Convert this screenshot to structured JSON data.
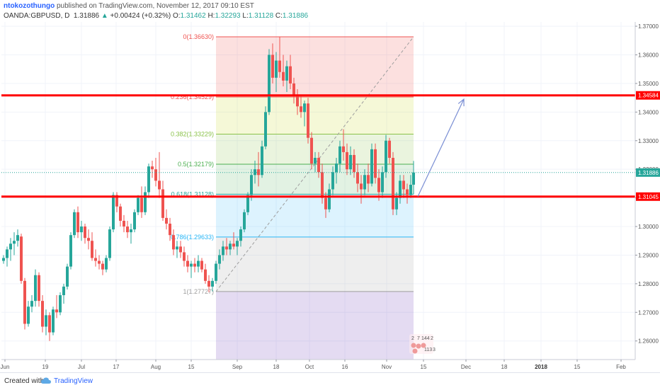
{
  "header": {
    "user": "ntokozothungo",
    "published": "published on TradingView.com, November 12, 2017 09:10 EST",
    "symbol": "OANDA:GBPUSD, D",
    "last": "1.31886",
    "change": "+0.00424 (+0.32%)",
    "o_label": "O:",
    "o_val": "1.31462",
    "h_label": "H:",
    "h_val": "1.32293",
    "l_label": "L:",
    "l_val": "1.31128",
    "c_label": "C:",
    "c_val": "1.31886"
  },
  "footer": {
    "created": "Created with",
    "brand": "TradingView"
  },
  "colors": {
    "up": "#26a69a",
    "down": "#ef5350",
    "level": "#ff0000",
    "arrow": "#7b8fd4",
    "accent": "#2962ff"
  },
  "chart_data": {
    "type": "candlestick",
    "ylim": [
      1.2535,
      1.3715
    ],
    "yticks": [
      1.26,
      1.27,
      1.28,
      1.29,
      1.3,
      1.31,
      1.32,
      1.33,
      1.34,
      1.35,
      1.36,
      1.37
    ],
    "ytick_labels": [
      "1.26000",
      "1.27000",
      "1.28000",
      "1.29000",
      "1.30000",
      "1.31000",
      "1.32000",
      "1.33000",
      "1.34000",
      "1.35000",
      "1.36000",
      "1.37000"
    ],
    "xticks": [
      {
        "label": "Jun",
        "x": 7
      },
      {
        "label": "19",
        "x": 64
      },
      {
        "label": "Jul",
        "x": 115
      },
      {
        "label": "17",
        "x": 164
      },
      {
        "label": "Aug",
        "x": 220
      },
      {
        "label": "15",
        "x": 270
      },
      {
        "label": "Sep",
        "x": 335
      },
      {
        "label": "18",
        "x": 390
      },
      {
        "label": "Oct",
        "x": 437
      },
      {
        "label": "16",
        "x": 487
      },
      {
        "label": "Nov",
        "x": 546
      },
      {
        "label": "15",
        "x": 598
      },
      {
        "label": "Dec",
        "x": 658
      },
      {
        "label": "18",
        "x": 712
      },
      {
        "label": "2018",
        "x": 764
      },
      {
        "label": "15",
        "x": 815
      },
      {
        "label": "Feb",
        "x": 877
      }
    ],
    "fib_levels": [
      {
        "ratio": "0",
        "price": 1.3663,
        "label": "0(1.36630)",
        "color": "#ef5350",
        "fill": "rgba(239,83,80,0.18)"
      },
      {
        "ratio": "0.236",
        "price": 1.34529,
        "label": "0.236(1.34529)",
        "color": "#ef5350",
        "fill": "rgba(205,220,57,0.20)"
      },
      {
        "ratio": "0.382",
        "price": 1.33229,
        "label": "0.382(1.33229)",
        "color": "#8bc34a",
        "fill": "rgba(139,195,74,0.18)"
      },
      {
        "ratio": "0.5",
        "price": 1.32179,
        "label": "0.5(1.32179)",
        "color": "#4caf50",
        "fill": "rgba(76,175,80,0.16)"
      },
      {
        "ratio": "0.618",
        "price": 1.31128,
        "label": "0.618(1.31128)",
        "color": "#26a69a",
        "fill": "rgba(41,182,246,0.16)"
      },
      {
        "ratio": "0.786",
        "price": 1.29633,
        "label": "0.786(1.29633)",
        "color": "#29b6f6",
        "fill": "rgba(158,158,158,0.18)"
      },
      {
        "ratio": "1",
        "price": 1.27727,
        "label": "1(1.27727)",
        "color": "#9e9e9e",
        "fill": "rgba(103,58,183,0.18)"
      }
    ],
    "horizontal_levels": [
      {
        "price": 1.34584,
        "label": "1.34584"
      },
      {
        "price": 1.31045,
        "label": "1.31045"
      }
    ],
    "last_price_label": "1.31886",
    "last_price": 1.31886,
    "arrow": {
      "from_price": 1.3105,
      "to_price": 1.3445
    },
    "badges": [
      "2",
      "7",
      "144",
      "2",
      "113",
      "3"
    ],
    "candles": [
      {
        "x": 5,
        "o": 1.288,
        "h": 1.29,
        "l": 1.287,
        "c": 1.289
      },
      {
        "x": 10,
        "o": 1.289,
        "h": 1.293,
        "l": 1.286,
        "c": 1.292
      },
      {
        "x": 15,
        "o": 1.292,
        "h": 1.296,
        "l": 1.288,
        "c": 1.294
      },
      {
        "x": 20,
        "o": 1.294,
        "h": 1.298,
        "l": 1.29,
        "c": 1.295
      },
      {
        "x": 25,
        "o": 1.295,
        "h": 1.299,
        "l": 1.293,
        "c": 1.297
      },
      {
        "x": 30,
        "o": 1.2965,
        "h": 1.2975,
        "l": 1.28,
        "c": 1.281
      },
      {
        "x": 35,
        "o": 1.281,
        "h": 1.282,
        "l": 1.264,
        "c": 1.266
      },
      {
        "x": 40,
        "o": 1.266,
        "h": 1.274,
        "l": 1.265,
        "c": 1.272
      },
      {
        "x": 45,
        "o": 1.272,
        "h": 1.276,
        "l": 1.27,
        "c": 1.274
      },
      {
        "x": 50,
        "o": 1.274,
        "h": 1.285,
        "l": 1.272,
        "c": 1.283
      },
      {
        "x": 55,
        "o": 1.283,
        "h": 1.284,
        "l": 1.272,
        "c": 1.274
      },
      {
        "x": 60,
        "o": 1.274,
        "h": 1.276,
        "l": 1.263,
        "c": 1.265
      },
      {
        "x": 65,
        "o": 1.265,
        "h": 1.271,
        "l": 1.262,
        "c": 1.269
      },
      {
        "x": 70,
        "o": 1.269,
        "h": 1.27,
        "l": 1.26,
        "c": 1.263
      },
      {
        "x": 75,
        "o": 1.263,
        "h": 1.272,
        "l": 1.262,
        "c": 1.271
      },
      {
        "x": 80,
        "o": 1.271,
        "h": 1.276,
        "l": 1.268,
        "c": 1.27
      },
      {
        "x": 85,
        "o": 1.27,
        "h": 1.277,
        "l": 1.269,
        "c": 1.276
      },
      {
        "x": 90,
        "o": 1.276,
        "h": 1.28,
        "l": 1.273,
        "c": 1.279
      },
      {
        "x": 95,
        "o": 1.279,
        "h": 1.287,
        "l": 1.278,
        "c": 1.286
      },
      {
        "x": 100,
        "o": 1.286,
        "h": 1.298,
        "l": 1.285,
        "c": 1.297
      },
      {
        "x": 105,
        "o": 1.297,
        "h": 1.306,
        "l": 1.296,
        "c": 1.305
      },
      {
        "x": 110,
        "o": 1.305,
        "h": 1.307,
        "l": 1.296,
        "c": 1.298
      },
      {
        "x": 115,
        "o": 1.298,
        "h": 1.302,
        "l": 1.295,
        "c": 1.3
      },
      {
        "x": 120,
        "o": 1.3,
        "h": 1.301,
        "l": 1.294,
        "c": 1.296
      },
      {
        "x": 125,
        "o": 1.296,
        "h": 1.299,
        "l": 1.292,
        "c": 1.295
      },
      {
        "x": 130,
        "o": 1.295,
        "h": 1.298,
        "l": 1.288,
        "c": 1.289
      },
      {
        "x": 135,
        "o": 1.289,
        "h": 1.292,
        "l": 1.286,
        "c": 1.288
      },
      {
        "x": 140,
        "o": 1.288,
        "h": 1.29,
        "l": 1.285,
        "c": 1.287
      },
      {
        "x": 145,
        "o": 1.287,
        "h": 1.288,
        "l": 1.283,
        "c": 1.285
      },
      {
        "x": 150,
        "o": 1.285,
        "h": 1.29,
        "l": 1.284,
        "c": 1.289
      },
      {
        "x": 155,
        "o": 1.289,
        "h": 1.3,
        "l": 1.288,
        "c": 1.299
      },
      {
        "x": 160,
        "o": 1.299,
        "h": 1.312,
        "l": 1.298,
        "c": 1.311
      },
      {
        "x": 165,
        "o": 1.311,
        "h": 1.312,
        "l": 1.305,
        "c": 1.307
      },
      {
        "x": 170,
        "o": 1.307,
        "h": 1.308,
        "l": 1.3,
        "c": 1.302
      },
      {
        "x": 175,
        "o": 1.302,
        "h": 1.304,
        "l": 1.298,
        "c": 1.3
      },
      {
        "x": 180,
        "o": 1.3,
        "h": 1.302,
        "l": 1.296,
        "c": 1.298
      },
      {
        "x": 185,
        "o": 1.298,
        "h": 1.301,
        "l": 1.294,
        "c": 1.299
      },
      {
        "x": 190,
        "o": 1.299,
        "h": 1.306,
        "l": 1.298,
        "c": 1.305
      },
      {
        "x": 195,
        "o": 1.305,
        "h": 1.311,
        "l": 1.304,
        "c": 1.31
      },
      {
        "x": 200,
        "o": 1.31,
        "h": 1.314,
        "l": 1.303,
        "c": 1.305
      },
      {
        "x": 205,
        "o": 1.305,
        "h": 1.314,
        "l": 1.304,
        "c": 1.312
      },
      {
        "x": 210,
        "o": 1.312,
        "h": 1.322,
        "l": 1.31,
        "c": 1.321
      },
      {
        "x": 215,
        "o": 1.321,
        "h": 1.323,
        "l": 1.317,
        "c": 1.32
      },
      {
        "x": 220,
        "o": 1.32,
        "h": 1.324,
        "l": 1.314,
        "c": 1.316
      },
      {
        "x": 225,
        "o": 1.316,
        "h": 1.326,
        "l": 1.31,
        "c": 1.313
      },
      {
        "x": 230,
        "o": 1.313,
        "h": 1.316,
        "l": 1.302,
        "c": 1.303
      },
      {
        "x": 235,
        "o": 1.303,
        "h": 1.306,
        "l": 1.299,
        "c": 1.301
      },
      {
        "x": 240,
        "o": 1.301,
        "h": 1.303,
        "l": 1.295,
        "c": 1.297
      },
      {
        "x": 245,
        "o": 1.297,
        "h": 1.299,
        "l": 1.29,
        "c": 1.292
      },
      {
        "x": 250,
        "o": 1.292,
        "h": 1.295,
        "l": 1.289,
        "c": 1.293
      },
      {
        "x": 255,
        "o": 1.293,
        "h": 1.295,
        "l": 1.289,
        "c": 1.291
      },
      {
        "x": 260,
        "o": 1.291,
        "h": 1.293,
        "l": 1.286,
        "c": 1.288
      },
      {
        "x": 265,
        "o": 1.288,
        "h": 1.29,
        "l": 1.284,
        "c": 1.286
      },
      {
        "x": 270,
        "o": 1.286,
        "h": 1.288,
        "l": 1.282,
        "c": 1.287
      },
      {
        "x": 275,
        "o": 1.287,
        "h": 1.289,
        "l": 1.284,
        "c": 1.286
      },
      {
        "x": 280,
        "o": 1.286,
        "h": 1.29,
        "l": 1.284,
        "c": 1.288
      },
      {
        "x": 285,
        "o": 1.288,
        "h": 1.289,
        "l": 1.284,
        "c": 1.285
      },
      {
        "x": 290,
        "o": 1.285,
        "h": 1.287,
        "l": 1.28,
        "c": 1.281
      },
      {
        "x": 295,
        "o": 1.281,
        "h": 1.283,
        "l": 1.277,
        "c": 1.279
      },
      {
        "x": 300,
        "o": 1.279,
        "h": 1.282,
        "l": 1.2773,
        "c": 1.281
      },
      {
        "x": 305,
        "o": 1.281,
        "h": 1.288,
        "l": 1.28,
        "c": 1.287
      },
      {
        "x": 310,
        "o": 1.287,
        "h": 1.292,
        "l": 1.285,
        "c": 1.29
      },
      {
        "x": 315,
        "o": 1.29,
        "h": 1.295,
        "l": 1.288,
        "c": 1.293
      },
      {
        "x": 320,
        "o": 1.293,
        "h": 1.296,
        "l": 1.29,
        "c": 1.292
      },
      {
        "x": 325,
        "o": 1.292,
        "h": 1.295,
        "l": 1.29,
        "c": 1.294
      },
      {
        "x": 330,
        "o": 1.294,
        "h": 1.298,
        "l": 1.292,
        "c": 1.293
      },
      {
        "x": 335,
        "o": 1.293,
        "h": 1.296,
        "l": 1.29,
        "c": 1.295
      },
      {
        "x": 340,
        "o": 1.295,
        "h": 1.3,
        "l": 1.293,
        "c": 1.299
      },
      {
        "x": 345,
        "o": 1.299,
        "h": 1.306,
        "l": 1.298,
        "c": 1.305
      },
      {
        "x": 350,
        "o": 1.305,
        "h": 1.312,
        "l": 1.304,
        "c": 1.311
      },
      {
        "x": 355,
        "o": 1.311,
        "h": 1.32,
        "l": 1.309,
        "c": 1.318
      },
      {
        "x": 360,
        "o": 1.318,
        "h": 1.323,
        "l": 1.315,
        "c": 1.32
      },
      {
        "x": 365,
        "o": 1.32,
        "h": 1.326,
        "l": 1.314,
        "c": 1.318
      },
      {
        "x": 370,
        "o": 1.318,
        "h": 1.33,
        "l": 1.317,
        "c": 1.328
      },
      {
        "x": 375,
        "o": 1.328,
        "h": 1.342,
        "l": 1.327,
        "c": 1.34
      },
      {
        "x": 380,
        "o": 1.34,
        "h": 1.362,
        "l": 1.339,
        "c": 1.36
      },
      {
        "x": 385,
        "o": 1.36,
        "h": 1.364,
        "l": 1.35,
        "c": 1.352
      },
      {
        "x": 390,
        "o": 1.352,
        "h": 1.361,
        "l": 1.347,
        "c": 1.358
      },
      {
        "x": 395,
        "o": 1.358,
        "h": 1.3663,
        "l": 1.352,
        "c": 1.354
      },
      {
        "x": 400,
        "o": 1.354,
        "h": 1.36,
        "l": 1.349,
        "c": 1.351
      },
      {
        "x": 405,
        "o": 1.351,
        "h": 1.358,
        "l": 1.347,
        "c": 1.356
      },
      {
        "x": 410,
        "o": 1.356,
        "h": 1.36,
        "l": 1.348,
        "c": 1.35
      },
      {
        "x": 415,
        "o": 1.35,
        "h": 1.352,
        "l": 1.343,
        "c": 1.346
      },
      {
        "x": 420,
        "o": 1.346,
        "h": 1.348,
        "l": 1.339,
        "c": 1.342
      },
      {
        "x": 425,
        "o": 1.342,
        "h": 1.346,
        "l": 1.338,
        "c": 1.34
      },
      {
        "x": 430,
        "o": 1.34,
        "h": 1.344,
        "l": 1.335,
        "c": 1.343
      },
      {
        "x": 435,
        "o": 1.343,
        "h": 1.345,
        "l": 1.329,
        "c": 1.331
      },
      {
        "x": 440,
        "o": 1.331,
        "h": 1.333,
        "l": 1.32,
        "c": 1.322
      },
      {
        "x": 445,
        "o": 1.322,
        "h": 1.326,
        "l": 1.319,
        "c": 1.324
      },
      {
        "x": 450,
        "o": 1.324,
        "h": 1.326,
        "l": 1.317,
        "c": 1.319
      },
      {
        "x": 455,
        "o": 1.319,
        "h": 1.322,
        "l": 1.308,
        "c": 1.31
      },
      {
        "x": 460,
        "o": 1.31,
        "h": 1.312,
        "l": 1.303,
        "c": 1.306
      },
      {
        "x": 465,
        "o": 1.306,
        "h": 1.315,
        "l": 1.305,
        "c": 1.313
      },
      {
        "x": 470,
        "o": 1.313,
        "h": 1.321,
        "l": 1.311,
        "c": 1.319
      },
      {
        "x": 475,
        "o": 1.319,
        "h": 1.324,
        "l": 1.315,
        "c": 1.322
      },
      {
        "x": 480,
        "o": 1.322,
        "h": 1.33,
        "l": 1.319,
        "c": 1.328
      },
      {
        "x": 485,
        "o": 1.328,
        "h": 1.334,
        "l": 1.323,
        "c": 1.326
      },
      {
        "x": 490,
        "o": 1.326,
        "h": 1.329,
        "l": 1.318,
        "c": 1.32
      },
      {
        "x": 495,
        "o": 1.32,
        "h": 1.328,
        "l": 1.318,
        "c": 1.325
      },
      {
        "x": 500,
        "o": 1.325,
        "h": 1.327,
        "l": 1.317,
        "c": 1.319
      },
      {
        "x": 505,
        "o": 1.319,
        "h": 1.322,
        "l": 1.312,
        "c": 1.315
      },
      {
        "x": 510,
        "o": 1.315,
        "h": 1.318,
        "l": 1.308,
        "c": 1.313
      },
      {
        "x": 515,
        "o": 1.313,
        "h": 1.32,
        "l": 1.311,
        "c": 1.318
      },
      {
        "x": 520,
        "o": 1.318,
        "h": 1.322,
        "l": 1.312,
        "c": 1.315
      },
      {
        "x": 525,
        "o": 1.315,
        "h": 1.329,
        "l": 1.314,
        "c": 1.327
      },
      {
        "x": 530,
        "o": 1.327,
        "h": 1.329,
        "l": 1.315,
        "c": 1.317
      },
      {
        "x": 535,
        "o": 1.317,
        "h": 1.32,
        "l": 1.309,
        "c": 1.312
      },
      {
        "x": 540,
        "o": 1.312,
        "h": 1.321,
        "l": 1.31,
        "c": 1.319
      },
      {
        "x": 545,
        "o": 1.319,
        "h": 1.332,
        "l": 1.317,
        "c": 1.33
      },
      {
        "x": 550,
        "o": 1.33,
        "h": 1.331,
        "l": 1.322,
        "c": 1.324
      },
      {
        "x": 555,
        "o": 1.324,
        "h": 1.326,
        "l": 1.304,
        "c": 1.306
      },
      {
        "x": 560,
        "o": 1.306,
        "h": 1.312,
        "l": 1.304,
        "c": 1.31
      },
      {
        "x": 565,
        "o": 1.31,
        "h": 1.318,
        "l": 1.308,
        "c": 1.316
      },
      {
        "x": 570,
        "o": 1.316,
        "h": 1.318,
        "l": 1.31,
        "c": 1.313
      },
      {
        "x": 575,
        "o": 1.313,
        "h": 1.315,
        "l": 1.308,
        "c": 1.311
      },
      {
        "x": 580,
        "o": 1.311,
        "h": 1.318,
        "l": 1.31,
        "c": 1.3146
      },
      {
        "x": 584,
        "o": 1.31462,
        "h": 1.32293,
        "l": 1.31128,
        "c": 1.31886
      }
    ]
  }
}
